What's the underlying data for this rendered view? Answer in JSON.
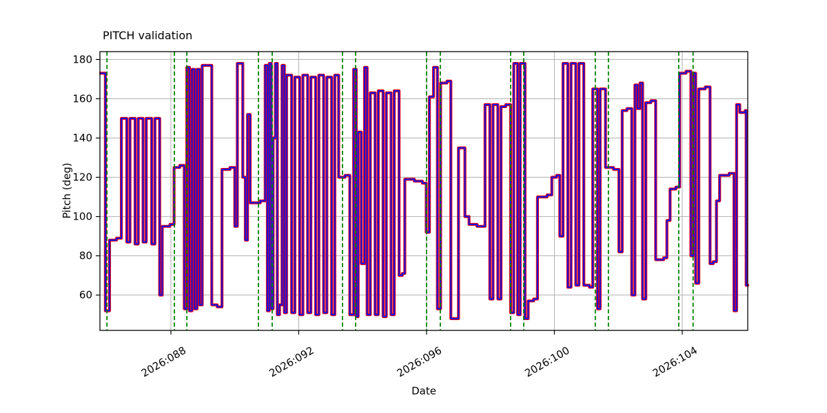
{
  "chart_data": {
    "type": "line",
    "style": "step-post",
    "title": "PITCH validation",
    "xlabel": "Date",
    "ylabel": "Pitch (deg)",
    "xlim": [
      85.78,
      106.05
    ],
    "ylim": [
      42,
      184
    ],
    "grid": true,
    "legend": "none",
    "x_ticks": [
      {
        "value": 88,
        "label": "2026:088"
      },
      {
        "value": 92,
        "label": "2026:092"
      },
      {
        "value": 96,
        "label": "2026:096"
      },
      {
        "value": 100,
        "label": "2026:100"
      },
      {
        "value": 104,
        "label": "2026:104"
      }
    ],
    "y_ticks": [
      60,
      80,
      100,
      120,
      140,
      160,
      180
    ],
    "colors": {
      "grid": "#b0b0b0",
      "frame": "#000000",
      "background": "#ffffff"
    },
    "series": [
      {
        "name": "red-line",
        "color": "#ee0011",
        "width": 4.2
      },
      {
        "name": "blue-line",
        "color": "#1414dd",
        "width": 2.1
      }
    ],
    "event_lines": {
      "color": "#008000",
      "style": "dashed",
      "x": [
        86.0,
        88.11,
        88.5,
        90.74,
        91.17,
        93.37,
        93.78,
        96.0,
        96.43,
        98.63,
        99.04,
        101.28,
        101.69,
        103.89,
        104.34
      ]
    },
    "steps": [
      [
        85.8,
        173
      ],
      [
        85.95,
        52
      ],
      [
        86.08,
        88
      ],
      [
        86.3,
        89
      ],
      [
        86.45,
        150
      ],
      [
        86.62,
        87
      ],
      [
        86.72,
        150
      ],
      [
        86.88,
        86
      ],
      [
        86.98,
        150
      ],
      [
        87.13,
        87
      ],
      [
        87.23,
        150
      ],
      [
        87.4,
        86
      ],
      [
        87.5,
        150
      ],
      [
        87.65,
        60
      ],
      [
        87.73,
        95
      ],
      [
        87.97,
        96
      ],
      [
        88.1,
        125
      ],
      [
        88.28,
        126
      ],
      [
        88.42,
        53
      ],
      [
        88.5,
        176
      ],
      [
        88.58,
        52
      ],
      [
        88.66,
        175
      ],
      [
        88.74,
        53
      ],
      [
        88.82,
        175
      ],
      [
        88.9,
        55
      ],
      [
        88.98,
        177
      ],
      [
        89.18,
        177
      ],
      [
        89.28,
        55
      ],
      [
        89.45,
        54
      ],
      [
        89.6,
        124
      ],
      [
        89.85,
        125
      ],
      [
        90.0,
        95
      ],
      [
        90.08,
        178
      ],
      [
        90.25,
        120
      ],
      [
        90.33,
        88
      ],
      [
        90.4,
        152
      ],
      [
        90.48,
        107
      ],
      [
        90.8,
        108
      ],
      [
        90.95,
        177
      ],
      [
        91.02,
        52
      ],
      [
        91.08,
        178
      ],
      [
        91.14,
        53
      ],
      [
        91.2,
        140
      ],
      [
        91.27,
        178
      ],
      [
        91.33,
        50
      ],
      [
        91.4,
        55
      ],
      [
        91.48,
        177
      ],
      [
        91.55,
        51
      ],
      [
        91.62,
        172
      ],
      [
        91.78,
        51
      ],
      [
        91.88,
        171
      ],
      [
        92.03,
        50
      ],
      [
        92.13,
        172
      ],
      [
        92.28,
        51
      ],
      [
        92.38,
        171
      ],
      [
        92.53,
        50
      ],
      [
        92.63,
        172
      ],
      [
        92.78,
        51
      ],
      [
        92.88,
        171
      ],
      [
        93.03,
        50
      ],
      [
        93.13,
        172
      ],
      [
        93.25,
        120
      ],
      [
        93.45,
        121
      ],
      [
        93.6,
        50
      ],
      [
        93.72,
        175
      ],
      [
        93.8,
        49
      ],
      [
        93.86,
        143
      ],
      [
        93.96,
        76
      ],
      [
        94.06,
        176
      ],
      [
        94.14,
        50
      ],
      [
        94.24,
        163
      ],
      [
        94.39,
        50
      ],
      [
        94.49,
        164
      ],
      [
        94.64,
        49
      ],
      [
        94.74,
        163
      ],
      [
        94.89,
        50
      ],
      [
        94.99,
        164
      ],
      [
        95.14,
        70
      ],
      [
        95.24,
        71
      ],
      [
        95.32,
        119
      ],
      [
        95.62,
        118
      ],
      [
        95.87,
        117
      ],
      [
        95.99,
        92
      ],
      [
        96.09,
        161
      ],
      [
        96.22,
        176
      ],
      [
        96.34,
        53
      ],
      [
        96.44,
        168
      ],
      [
        96.64,
        169
      ],
      [
        96.76,
        48
      ],
      [
        96.9,
        48
      ],
      [
        97.0,
        135
      ],
      [
        97.2,
        100
      ],
      [
        97.33,
        96
      ],
      [
        97.58,
        95
      ],
      [
        97.83,
        157
      ],
      [
        97.98,
        58
      ],
      [
        98.08,
        157
      ],
      [
        98.23,
        58
      ],
      [
        98.33,
        156
      ],
      [
        98.48,
        157
      ],
      [
        98.63,
        51
      ],
      [
        98.73,
        178
      ],
      [
        98.85,
        50
      ],
      [
        98.93,
        178
      ],
      [
        99.08,
        48
      ],
      [
        99.18,
        57
      ],
      [
        99.35,
        58
      ],
      [
        99.47,
        110
      ],
      [
        99.77,
        111
      ],
      [
        99.92,
        120
      ],
      [
        100.07,
        121
      ],
      [
        100.17,
        90
      ],
      [
        100.27,
        178
      ],
      [
        100.42,
        64
      ],
      [
        100.52,
        178
      ],
      [
        100.67,
        65
      ],
      [
        100.77,
        178
      ],
      [
        100.92,
        65
      ],
      [
        101.1,
        64
      ],
      [
        101.2,
        165
      ],
      [
        101.35,
        53
      ],
      [
        101.43,
        165
      ],
      [
        101.6,
        125
      ],
      [
        101.85,
        124
      ],
      [
        102.02,
        82
      ],
      [
        102.12,
        154
      ],
      [
        102.27,
        155
      ],
      [
        102.42,
        60
      ],
      [
        102.52,
        167
      ],
      [
        102.6,
        155
      ],
      [
        102.68,
        168
      ],
      [
        102.76,
        58
      ],
      [
        102.86,
        158
      ],
      [
        103.02,
        159
      ],
      [
        103.17,
        78
      ],
      [
        103.42,
        79
      ],
      [
        103.52,
        98
      ],
      [
        103.62,
        114
      ],
      [
        103.8,
        115
      ],
      [
        103.92,
        173
      ],
      [
        104.12,
        174
      ],
      [
        104.27,
        80
      ],
      [
        104.35,
        173
      ],
      [
        104.42,
        66
      ],
      [
        104.52,
        165
      ],
      [
        104.72,
        166
      ],
      [
        104.87,
        76
      ],
      [
        104.97,
        77
      ],
      [
        105.07,
        108
      ],
      [
        105.17,
        121
      ],
      [
        105.47,
        122
      ],
      [
        105.62,
        52
      ],
      [
        105.7,
        157
      ],
      [
        105.8,
        153
      ],
      [
        105.97,
        154
      ],
      [
        106.0,
        65
      ]
    ]
  }
}
